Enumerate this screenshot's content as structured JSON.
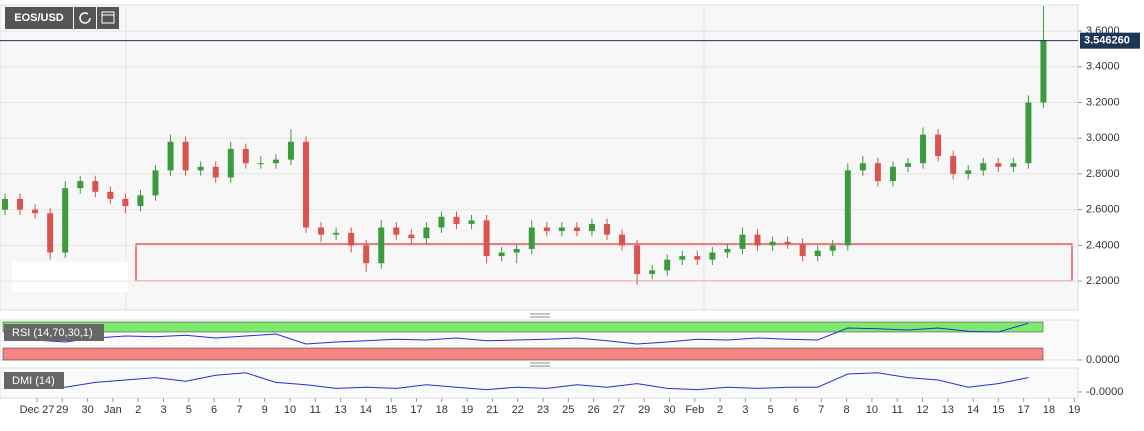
{
  "chart_data": {
    "type": "candlestick",
    "symbol": "EOS/USD",
    "candles": [
      [
        2.6,
        2.69,
        2.57,
        2.66
      ],
      [
        2.66,
        2.69,
        2.57,
        2.6
      ],
      [
        2.6,
        2.63,
        2.55,
        2.58
      ],
      [
        2.58,
        2.61,
        2.32,
        2.36
      ],
      [
        2.36,
        2.76,
        2.33,
        2.72
      ],
      [
        2.72,
        2.79,
        2.69,
        2.76
      ],
      [
        2.76,
        2.79,
        2.67,
        2.7
      ],
      [
        2.7,
        2.73,
        2.63,
        2.66
      ],
      [
        2.66,
        2.69,
        2.58,
        2.62
      ],
      [
        2.62,
        2.71,
        2.59,
        2.68
      ],
      [
        2.68,
        2.85,
        2.65,
        2.82
      ],
      [
        2.82,
        3.02,
        2.79,
        2.98
      ],
      [
        2.98,
        3.01,
        2.79,
        2.82
      ],
      [
        2.82,
        2.87,
        2.79,
        2.84
      ],
      [
        2.84,
        2.87,
        2.75,
        2.78
      ],
      [
        2.78,
        2.98,
        2.75,
        2.94
      ],
      [
        2.94,
        2.97,
        2.83,
        2.86
      ],
      [
        2.86,
        2.9,
        2.83,
        2.86
      ],
      [
        2.86,
        2.91,
        2.83,
        2.88
      ],
      [
        2.88,
        3.05,
        2.85,
        2.98
      ],
      [
        2.98,
        3.01,
        2.47,
        2.5
      ],
      [
        2.5,
        2.53,
        2.42,
        2.46
      ],
      [
        2.46,
        2.5,
        2.43,
        2.47
      ],
      [
        2.47,
        2.5,
        2.36,
        2.4
      ],
      [
        2.4,
        2.43,
        2.25,
        2.3
      ],
      [
        2.3,
        2.54,
        2.27,
        2.5
      ],
      [
        2.5,
        2.53,
        2.43,
        2.46
      ],
      [
        2.46,
        2.49,
        2.41,
        2.44
      ],
      [
        2.44,
        2.53,
        2.41,
        2.5
      ],
      [
        2.5,
        2.59,
        2.47,
        2.56
      ],
      [
        2.56,
        2.59,
        2.49,
        2.52
      ],
      [
        2.52,
        2.57,
        2.49,
        2.54
      ],
      [
        2.54,
        2.57,
        2.3,
        2.34
      ],
      [
        2.34,
        2.39,
        2.31,
        2.36
      ],
      [
        2.36,
        2.41,
        2.3,
        2.38
      ],
      [
        2.38,
        2.54,
        2.35,
        2.5
      ],
      [
        2.5,
        2.53,
        2.45,
        2.48
      ],
      [
        2.48,
        2.53,
        2.45,
        2.5
      ],
      [
        2.5,
        2.53,
        2.45,
        2.48
      ],
      [
        2.48,
        2.55,
        2.45,
        2.52
      ],
      [
        2.52,
        2.55,
        2.43,
        2.46
      ],
      [
        2.46,
        2.49,
        2.37,
        2.4
      ],
      [
        2.4,
        2.43,
        2.18,
        2.24
      ],
      [
        2.24,
        2.29,
        2.21,
        2.26
      ],
      [
        2.26,
        2.35,
        2.23,
        2.32
      ],
      [
        2.32,
        2.37,
        2.29,
        2.34
      ],
      [
        2.34,
        2.37,
        2.29,
        2.32
      ],
      [
        2.32,
        2.39,
        2.29,
        2.36
      ],
      [
        2.36,
        2.41,
        2.33,
        2.38
      ],
      [
        2.38,
        2.5,
        2.35,
        2.46
      ],
      [
        2.46,
        2.49,
        2.37,
        2.4
      ],
      [
        2.4,
        2.45,
        2.37,
        2.42
      ],
      [
        2.42,
        2.45,
        2.38,
        2.41
      ],
      [
        2.41,
        2.44,
        2.31,
        2.34
      ],
      [
        2.34,
        2.4,
        2.31,
        2.37
      ],
      [
        2.37,
        2.43,
        2.34,
        2.4
      ],
      [
        2.4,
        2.86,
        2.37,
        2.82
      ],
      [
        2.82,
        2.9,
        2.79,
        2.86
      ],
      [
        2.86,
        2.89,
        2.73,
        2.76
      ],
      [
        2.76,
        2.87,
        2.73,
        2.84
      ],
      [
        2.84,
        2.89,
        2.81,
        2.86
      ],
      [
        2.86,
        3.06,
        2.83,
        3.02
      ],
      [
        3.02,
        3.05,
        2.87,
        2.9
      ],
      [
        2.9,
        2.93,
        2.77,
        2.8
      ],
      [
        2.8,
        2.85,
        2.77,
        2.82
      ],
      [
        2.82,
        2.89,
        2.79,
        2.86
      ],
      [
        2.86,
        2.89,
        2.81,
        2.84
      ],
      [
        2.84,
        2.89,
        2.81,
        2.86
      ],
      [
        2.86,
        3.24,
        2.83,
        3.2
      ],
      [
        3.2,
        3.74,
        3.17,
        3.55
      ]
    ],
    "up_color": "#3d9b3d",
    "down_color": "#d9534f",
    "ylim": [
      2.038,
      3.746
    ],
    "yticks": [
      {
        "value": 2.2,
        "label": "2.2000"
      },
      {
        "value": 2.4,
        "label": "2.4000"
      },
      {
        "value": 2.6,
        "label": "2.6000"
      },
      {
        "value": 2.8,
        "label": "2.8000"
      },
      {
        "value": 3.0,
        "label": "3.0000"
      },
      {
        "value": 3.2,
        "label": "3.2000"
      },
      {
        "value": 3.4,
        "label": "3.4000"
      },
      {
        "value": 3.6,
        "label": "3.6000"
      }
    ],
    "last_price": {
      "value": 3.54626,
      "label": "3.546260"
    },
    "x_labels": [
      "Dec 27",
      "29",
      "30",
      "Jan",
      "2",
      "3",
      "5",
      "6",
      "7",
      "9",
      "10",
      "11",
      "13",
      "14",
      "15",
      "17",
      "18",
      "19",
      "21",
      "22",
      "23",
      "25",
      "26",
      "27",
      "29",
      "30",
      "Feb",
      "2",
      "3",
      "5",
      "6",
      "7",
      "8",
      "10",
      "11",
      "12",
      "13",
      "14",
      "15",
      "17",
      "18",
      "19"
    ],
    "rsi": {
      "name": "RSI (14,70,30,1)",
      "color": "#2233cc",
      "ylim": [
        0,
        100
      ],
      "upper": 70,
      "lower": 30,
      "values": [
        52,
        50,
        45,
        55,
        60,
        58,
        62,
        55,
        60,
        65,
        40,
        45,
        48,
        52,
        50,
        55,
        48,
        50,
        52,
        55,
        48,
        40,
        45,
        52,
        50,
        55,
        52,
        50,
        80,
        78,
        75,
        80,
        72,
        70,
        92
      ],
      "yticks": [
        {
          "value": 0,
          "label": "0.0000"
        }
      ]
    },
    "dmi": {
      "name": "DMI (14)",
      "color": "#2233cc",
      "ylim": [
        -0.25,
        1
      ],
      "values": [
        0.3,
        0.25,
        0.2,
        0.4,
        0.5,
        0.6,
        0.45,
        0.7,
        0.8,
        0.4,
        0.3,
        0.15,
        0.2,
        0.15,
        0.3,
        0.2,
        0.1,
        0.2,
        0.15,
        0.3,
        0.2,
        0.35,
        0.15,
        0.1,
        0.2,
        0.15,
        0.2,
        0.2,
        0.75,
        0.8,
        0.6,
        0.5,
        0.2,
        0.35,
        0.6
      ],
      "yticks": [
        {
          "value": 0,
          "label": "-0.0000"
        }
      ]
    }
  }
}
